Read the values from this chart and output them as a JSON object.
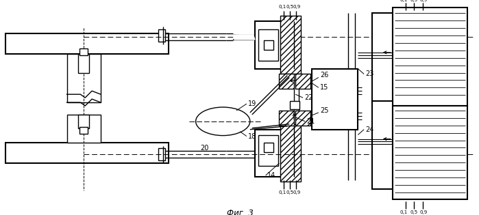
{
  "title": "Фиг. 3",
  "bg": "#ffffff",
  "lc": "#000000",
  "fig_w": 6.99,
  "fig_h": 3.15,
  "dpi": 100
}
